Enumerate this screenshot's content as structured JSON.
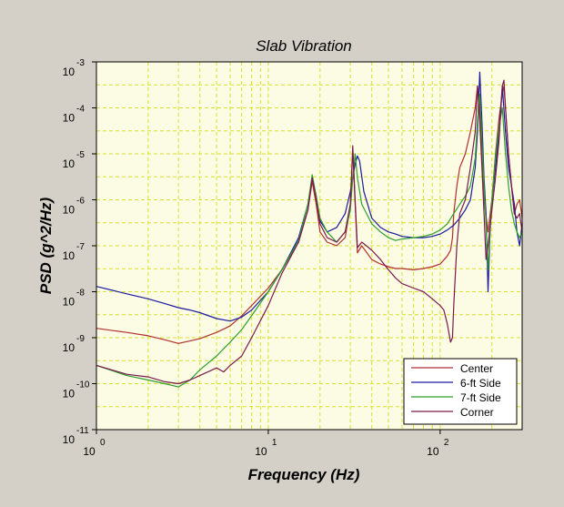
{
  "chart_data": {
    "type": "line",
    "title": "Slab Vibration",
    "xlabel": "Frequency (Hz)",
    "ylabel": "PSD (g^2/Hz)",
    "xscale": "log",
    "yscale": "log",
    "xlim": [
      1,
      300
    ],
    "ylim": [
      1e-11,
      0.001
    ],
    "grid": true,
    "legend_position": "bottom-right",
    "colors": {
      "background": "#d4d0c8",
      "plot_area": "#fcfbe3",
      "grid": "#d6e22c"
    },
    "x_ticks": [
      {
        "value": 1,
        "base": "10",
        "exp": "0"
      },
      {
        "value": 10,
        "base": "10",
        "exp": "1"
      },
      {
        "value": 100,
        "base": "10",
        "exp": "2"
      }
    ],
    "y_ticks": [
      {
        "value": 0.001,
        "base": "10",
        "exp": "-3"
      },
      {
        "value": 0.0001,
        "base": "10",
        "exp": "-4"
      },
      {
        "value": 1e-05,
        "base": "10",
        "exp": "-5"
      },
      {
        "value": 1e-06,
        "base": "10",
        "exp": "-6"
      },
      {
        "value": 1e-07,
        "base": "10",
        "exp": "-7"
      },
      {
        "value": 1e-08,
        "base": "10",
        "exp": "-8"
      },
      {
        "value": 1e-09,
        "base": "10",
        "exp": "-9"
      },
      {
        "value": 1e-10,
        "base": "10",
        "exp": "-10"
      },
      {
        "value": 1e-11,
        "base": "10",
        "exp": "-11"
      }
    ],
    "series": [
      {
        "name": "Center",
        "color": "#b03030",
        "x": [
          1,
          1.5,
          2,
          2.5,
          3,
          3.5,
          4,
          5,
          6,
          7,
          8,
          10,
          12,
          15,
          17,
          18,
          19,
          20,
          22,
          25,
          28,
          30,
          31,
          32,
          33,
          35,
          40,
          45,
          50,
          55,
          60,
          70,
          80,
          90,
          100,
          110,
          115,
          118,
          120,
          125,
          130,
          140,
          150,
          160,
          165,
          170,
          175,
          180,
          190,
          200,
          210,
          220,
          230,
          235,
          240,
          250,
          260,
          270,
          280,
          290,
          300
        ],
        "y": [
          1.6e-09,
          1.3e-09,
          1.1e-09,
          9e-10,
          7.5e-10,
          8.5e-10,
          9.5e-10,
          1.3e-09,
          1.8e-09,
          3e-09,
          5e-09,
          1.2e-08,
          3e-08,
          1.2e-07,
          6e-07,
          2.5e-06,
          8e-07,
          2e-07,
          1.2e-07,
          1e-07,
          1.5e-07,
          7e-07,
          1.2e-05,
          8e-07,
          7e-08,
          1e-07,
          5e-08,
          4e-08,
          3.5e-08,
          3.2e-08,
          3.2e-08,
          3e-08,
          3.2e-08,
          3.5e-08,
          4e-08,
          6e-08,
          8e-08,
          1.5e-07,
          5e-07,
          2e-06,
          5e-06,
          1e-05,
          3e-05,
          0.0001,
          0.0003,
          0.0001,
          1e-05,
          1e-06,
          2e-07,
          1e-06,
          1e-05,
          6e-05,
          0.0002,
          0.0003,
          0.0001,
          1e-05,
          2e-06,
          5e-07,
          8e-07,
          1e-06,
          4e-07
        ]
      },
      {
        "name": "6-ft Side",
        "color": "#1a1aa0",
        "x": [
          1,
          1.5,
          2,
          2.5,
          3,
          3.5,
          4,
          5,
          6,
          7,
          8,
          10,
          12,
          15,
          17,
          18,
          19,
          20,
          22,
          25,
          28,
          30,
          32,
          33,
          34,
          36,
          40,
          45,
          50,
          55,
          60,
          70,
          80,
          90,
          100,
          110,
          120,
          130,
          140,
          150,
          160,
          165,
          170,
          175,
          180,
          185,
          190,
          195,
          200,
          210,
          220,
          230,
          240,
          250,
          260,
          270,
          280,
          290,
          300
        ],
        "y": [
          1.3e-08,
          9e-09,
          7e-09,
          5.5e-09,
          4.5e-09,
          4e-09,
          3.5e-09,
          2.6e-09,
          2.3e-09,
          2.8e-09,
          4e-09,
          1e-08,
          3e-08,
          1.5e-07,
          8e-07,
          3e-06,
          1.2e-06,
          3.5e-07,
          2e-07,
          2.5e-07,
          5e-07,
          1.5e-06,
          6e-06,
          9e-06,
          7e-06,
          1.5e-06,
          4e-07,
          2.5e-07,
          2e-07,
          1.8e-07,
          1.6e-07,
          1.5e-07,
          1.5e-07,
          1.6e-07,
          1.8e-07,
          2.2e-07,
          2.8e-07,
          4e-07,
          6e-07,
          1e-06,
          5e-06,
          3e-05,
          0.0006,
          5e-05,
          3e-06,
          5e-07,
          1e-08,
          2e-07,
          1e-06,
          5e-06,
          3e-05,
          0.0003,
          3e-05,
          5e-06,
          2e-06,
          8e-07,
          2e-07,
          1e-07,
          3e-07
        ]
      },
      {
        "name": "7-ft Side",
        "color": "#2e9e2e",
        "x": [
          1,
          1.5,
          2,
          2.5,
          3,
          3.5,
          4,
          5,
          6,
          7,
          8,
          10,
          12,
          15,
          17,
          18,
          19,
          20,
          22,
          25,
          28,
          30,
          31,
          32,
          33,
          35,
          40,
          45,
          50,
          55,
          60,
          70,
          80,
          90,
          100,
          110,
          120,
          130,
          140,
          150,
          160,
          165,
          170,
          175,
          180,
          185,
          190,
          195,
          200,
          210,
          220,
          230,
          240,
          250,
          260,
          270,
          280,
          290,
          300
        ],
        "y": [
          2.5e-10,
          1.5e-10,
          1.2e-10,
          1e-10,
          8.5e-11,
          1.2e-10,
          2e-10,
          4e-10,
          8e-10,
          1.5e-09,
          3e-09,
          1e-08,
          3e-08,
          1.3e-07,
          8e-07,
          3.5e-06,
          1.2e-06,
          4e-07,
          2e-07,
          1.2e-07,
          2e-07,
          6e-07,
          3e-06,
          1e-05,
          3e-06,
          8e-07,
          3e-07,
          2e-07,
          1.5e-07,
          1.3e-07,
          1.4e-07,
          1.5e-07,
          1.6e-07,
          1.8e-07,
          2.2e-07,
          3e-07,
          5e-07,
          8e-07,
          1.2e-06,
          2e-06,
          8e-06,
          5e-05,
          0.0002,
          2e-05,
          2e-06,
          3e-07,
          3e-08,
          2e-07,
          1e-06,
          8e-06,
          4e-05,
          0.0001,
          1e-05,
          2e-06,
          6e-07,
          3e-07,
          2e-07,
          1.5e-07,
          2e-07
        ]
      },
      {
        "name": "Corner",
        "color": "#7a1a50",
        "x": [
          1,
          1.5,
          2,
          2.5,
          3,
          3.5,
          4,
          5,
          5.5,
          6,
          7,
          8,
          10,
          12,
          15,
          17,
          18,
          19,
          20,
          22,
          25,
          28,
          30,
          31,
          32,
          33,
          35,
          40,
          45,
          50,
          55,
          60,
          70,
          80,
          90,
          100,
          105,
          110,
          115,
          118,
          120,
          125,
          130,
          140,
          150,
          160,
          165,
          170,
          175,
          180,
          185,
          190,
          200,
          210,
          220,
          230,
          235,
          240,
          250,
          260,
          270,
          280,
          290,
          300
        ],
        "y": [
          2.5e-10,
          1.6e-10,
          1.4e-10,
          1.1e-10,
          1e-10,
          1.2e-10,
          1.5e-10,
          2.2e-10,
          1.8e-10,
          2.5e-10,
          4e-10,
          1e-09,
          5e-09,
          2.5e-08,
          1.2e-07,
          6e-07,
          3e-06,
          1e-06,
          3e-07,
          1.5e-07,
          1.2e-07,
          2e-07,
          8e-07,
          1.5e-05,
          1e-06,
          9e-08,
          1.2e-07,
          8e-08,
          5e-08,
          3e-08,
          2e-08,
          1.5e-08,
          1.2e-08,
          1e-08,
          7e-09,
          5e-09,
          4e-09,
          2e-09,
          8e-10,
          1e-09,
          5e-09,
          1e-07,
          5e-07,
          1e-06,
          5e-06,
          3e-05,
          0.0003,
          5e-05,
          5e-06,
          5e-07,
          5e-08,
          1e-07,
          6e-07,
          3e-06,
          2e-05,
          0.0003,
          0.0004,
          0.0001,
          1e-05,
          2e-06,
          5e-07,
          4e-07,
          5e-07,
          2e-07
        ]
      }
    ]
  }
}
